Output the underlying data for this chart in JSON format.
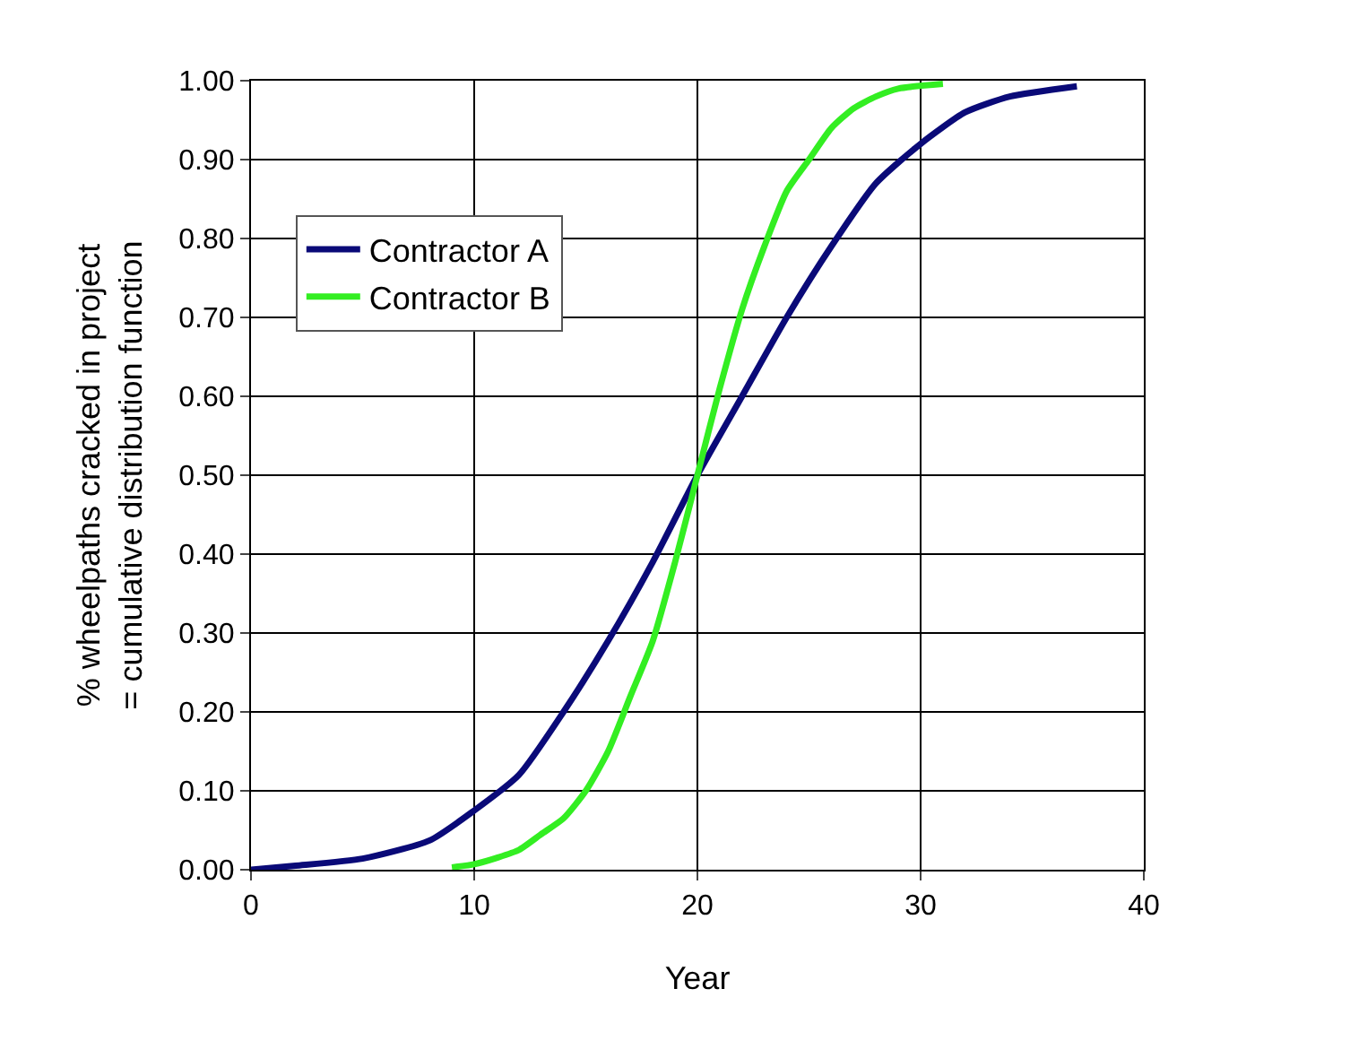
{
  "chart_data": {
    "type": "line",
    "xlabel": "Year",
    "ylabel": "% wheelpaths cracked in project\n= cumulative distribution function",
    "series": [
      {
        "name": "Contractor A",
        "color": "#0a0a78",
        "x": [
          0,
          2,
          5,
          8,
          10,
          12,
          14,
          16,
          18,
          20,
          22,
          24,
          26,
          28,
          30,
          32,
          34,
          37
        ],
        "values": [
          0,
          0.005,
          0.014,
          0.037,
          0.075,
          0.12,
          0.2,
          0.29,
          0.39,
          0.5,
          0.6,
          0.7,
          0.79,
          0.87,
          0.92,
          0.96,
          0.98,
          0.993
        ]
      },
      {
        "name": "Contractor B",
        "color": "#33ee22",
        "x": [
          9,
          10,
          11,
          12,
          13,
          14,
          15,
          16,
          17,
          18,
          19,
          20,
          21,
          22,
          23,
          24,
          25,
          26,
          27,
          28,
          29,
          31
        ],
        "values": [
          0.003,
          0.007,
          0.015,
          0.025,
          0.045,
          0.065,
          0.1,
          0.15,
          0.22,
          0.29,
          0.39,
          0.5,
          0.61,
          0.71,
          0.79,
          0.86,
          0.9,
          0.94,
          0.965,
          0.98,
          0.99,
          0.996
        ]
      }
    ],
    "xlim": [
      0,
      40
    ],
    "xticks": [
      0,
      10,
      20,
      30,
      40
    ],
    "ylim": [
      0,
      1
    ],
    "yticks": [
      {
        "value": 0,
        "label": "0.00"
      },
      {
        "value": 0.1,
        "label": "0.10"
      },
      {
        "value": 0.2,
        "label": "0.20"
      },
      {
        "value": 0.3,
        "label": "0.30"
      },
      {
        "value": 0.4,
        "label": "0.40"
      },
      {
        "value": 0.5,
        "label": "0.50"
      },
      {
        "value": 0.6,
        "label": "0.60"
      },
      {
        "value": 0.7,
        "label": "0.70"
      },
      {
        "value": 0.8,
        "label": "0.80"
      },
      {
        "value": 0.9,
        "label": "0.90"
      },
      {
        "value": 1,
        "label": "1.00"
      }
    ],
    "grid": true,
    "legend": "top left",
    "marker": "none",
    "line_style": "solid"
  }
}
